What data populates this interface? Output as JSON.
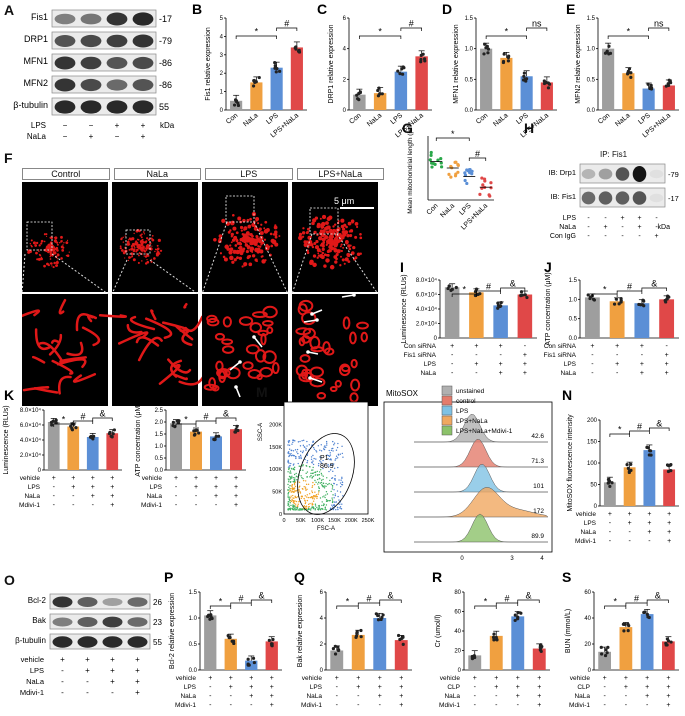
{
  "panels": {
    "A": {
      "letter": "A",
      "rows": [
        "Fis1",
        "DRP1",
        "MFN1",
        "MFN2",
        "β-tubulin"
      ],
      "mw": [
        "-17",
        "-79",
        "-86",
        "-86",
        "55"
      ],
      "cond": [
        {
          "label": "LPS",
          "vals": [
            "−",
            "−",
            "+",
            "+"
          ]
        },
        {
          "label": "NaLa",
          "vals": [
            "−",
            "+",
            "−",
            "+"
          ]
        }
      ],
      "kda": "kDa"
    },
    "F": {
      "letter": "F",
      "labels": [
        "Control",
        "NaLa",
        "LPS",
        "LPS+NaLa"
      ],
      "scale": "5 μm"
    },
    "G": {
      "letter": "G",
      "ylabel": "Mean mitochondrial length (μm)",
      "cats": [
        "Con",
        "NaLa",
        "LPS",
        "LPS+NaLa"
      ]
    },
    "H": {
      "letter": "H",
      "title": "IP: Fis1",
      "rows": [
        "IB: Drp1",
        "IB: Fis1"
      ],
      "mw": [
        "-79",
        "-17"
      ],
      "cond": [
        {
          "label": "LPS",
          "vals": [
            "-",
            "-",
            "+",
            "+",
            "-"
          ]
        },
        {
          "label": "NaLa",
          "vals": [
            "-",
            "+",
            "-",
            "+",
            "-"
          ]
        },
        {
          "label": "Con IgG",
          "vals": [
            "-",
            "-",
            "-",
            "-",
            "+"
          ]
        }
      ],
      "kda": "kDa"
    },
    "M": {
      "letter": "M",
      "mitosox": "MitoSOX",
      "gate": "P1",
      "gate_val": "86.9",
      "ssc": "SSC-A",
      "fsc": "FSC-A",
      "yticks": [
        "250K",
        "200K",
        "150K",
        "100K",
        "50K",
        "0"
      ],
      "xticks": [
        "0",
        "50K",
        "100K",
        "150K",
        "200K",
        "250K"
      ],
      "legend": [
        "unstained",
        "control",
        "LPS",
        "LPS+NaLa",
        "LPS+NaLa+Mdivi-1"
      ],
      "values": [
        "42.6",
        "71.3",
        "101",
        "172",
        "89.9"
      ],
      "xt": [
        "0",
        "3",
        "4"
      ]
    },
    "O": {
      "letter": "O",
      "rows": [
        "Bcl-2",
        "Bak",
        "β-tubulin"
      ],
      "mw": [
        "26",
        "23",
        "55"
      ],
      "cond": [
        {
          "label": "vehicle",
          "vals": [
            "+",
            "+",
            "+",
            "+"
          ]
        },
        {
          "label": "LPS",
          "vals": [
            "-",
            "+",
            "+",
            "+"
          ]
        },
        {
          "label": "NaLa",
          "vals": [
            "-",
            "-",
            "+",
            "+"
          ]
        },
        {
          "label": "Mdivi-1",
          "vals": [
            "-",
            "-",
            "-",
            "+"
          ]
        }
      ]
    }
  },
  "chart_data": [
    {
      "id": "B",
      "type": "bar",
      "ylabel": "Fis1 relative expression",
      "categories": [
        "Con",
        "NaLa",
        "LPS",
        "LPS+NaLa"
      ],
      "values": [
        0.5,
        1.5,
        2.3,
        3.4
      ],
      "ylim": [
        0,
        5
      ],
      "yticks": [
        "0",
        "1",
        "2",
        "3",
        "4",
        "5"
      ],
      "sig": [
        "*",
        "#"
      ]
    },
    {
      "id": "C",
      "type": "bar",
      "ylabel": "DRP1 relative expression",
      "categories": [
        "Con",
        "NaLa",
        "LPS",
        "LPS+NaLa"
      ],
      "values": [
        1.0,
        1.1,
        2.5,
        3.5
      ],
      "ylim": [
        0,
        6
      ],
      "yticks": [
        "0",
        "2",
        "4",
        "6"
      ],
      "sig": [
        "*",
        "#"
      ]
    },
    {
      "id": "D",
      "type": "bar",
      "ylabel": "MFN1 relative expression",
      "categories": [
        "Con",
        "NaLa",
        "LPS",
        "LPS+NaLa"
      ],
      "values": [
        1.0,
        0.85,
        0.55,
        0.45
      ],
      "ylim": [
        0,
        1.5
      ],
      "yticks": [
        "0.0",
        "0.5",
        "1.0",
        "1.5"
      ],
      "sig": [
        "*",
        "ns"
      ]
    },
    {
      "id": "E",
      "type": "bar",
      "ylabel": "MFN2 relative expression",
      "categories": [
        "Con",
        "NaLa",
        "LPS",
        "LPS+NaLa"
      ],
      "values": [
        1.0,
        0.6,
        0.35,
        0.4
      ],
      "ylim": [
        0,
        1.5
      ],
      "yticks": [
        "0.0",
        "0.5",
        "1.0",
        "1.5"
      ],
      "sig": [
        "*",
        "ns"
      ]
    },
    {
      "id": "G",
      "type": "scatter",
      "ylabel": "Mean mitochondrial length (μm)",
      "categories": [
        "Con",
        "NaLa",
        "LPS",
        "LPS+NaLa"
      ],
      "values": [
        1.8,
        1.5,
        1.1,
        0.6
      ],
      "ylim": [
        0,
        3
      ],
      "sig": [
        "*",
        "#"
      ]
    },
    {
      "id": "I",
      "type": "bar",
      "ylabel": "Luminescence (RLUs)",
      "categories": [
        "1",
        "2",
        "3",
        "4"
      ],
      "values": [
        7.0,
        6.3,
        4.5,
        6.0
      ],
      "ylim": [
        0,
        8
      ],
      "yticks": [
        "0",
        "2.0×10⁴",
        "4.0×10⁴",
        "6.0×10⁴",
        "8.0×10⁴"
      ],
      "sig": [
        "*",
        "#",
        "&"
      ],
      "cond": [
        {
          "label": "Con siRNA",
          "vals": [
            "+",
            "+",
            "+",
            "-"
          ]
        },
        {
          "label": "Fis1 siRNA",
          "vals": [
            "-",
            "-",
            "-",
            "+"
          ]
        },
        {
          "label": "LPS",
          "vals": [
            "-",
            "+",
            "+",
            "+"
          ]
        },
        {
          "label": "NaLa",
          "vals": [
            "-",
            "-",
            "+",
            "+"
          ]
        }
      ]
    },
    {
      "id": "J",
      "type": "bar",
      "ylabel": "ATP concentration (μM)",
      "categories": [
        "1",
        "2",
        "3",
        "4"
      ],
      "values": [
        1.05,
        0.95,
        0.9,
        1.0
      ],
      "ylim": [
        0,
        1.5
      ],
      "yticks": [
        "0.0",
        "0.5",
        "1.0",
        "1.5"
      ],
      "sig": [
        "*",
        "#",
        "&"
      ],
      "cond": [
        {
          "label": "Con siRNA",
          "vals": [
            "+",
            "+",
            "+",
            "-"
          ]
        },
        {
          "label": "Fis1 siRNA",
          "vals": [
            "-",
            "-",
            "-",
            "+"
          ]
        },
        {
          "label": "LPS",
          "vals": [
            "-",
            "+",
            "+",
            "+"
          ]
        },
        {
          "label": "NaLa",
          "vals": [
            "-",
            "-",
            "+",
            "+"
          ]
        }
      ]
    },
    {
      "id": "K",
      "type": "bar",
      "ylabel": "Luminescence (RLUs)",
      "categories": [
        "1",
        "2",
        "3",
        "4"
      ],
      "values": [
        6.4,
        5.8,
        4.4,
        4.9
      ],
      "ylim": [
        0,
        8
      ],
      "yticks": [
        "0",
        "2.0×10⁴",
        "4.0×10⁴",
        "6.0×10⁴",
        "8.0×10⁴"
      ],
      "sig": [
        "*",
        "#",
        "&"
      ],
      "cond": [
        {
          "label": "vehicle",
          "vals": [
            "+",
            "+",
            "+",
            "+"
          ]
        },
        {
          "label": "LPS",
          "vals": [
            "-",
            "+",
            "+",
            "+"
          ]
        },
        {
          "label": "NaLa",
          "vals": [
            "-",
            "-",
            "+",
            "+"
          ]
        },
        {
          "label": "Mdivi-1",
          "vals": [
            "-",
            "-",
            "-",
            "+"
          ]
        }
      ]
    },
    {
      "id": "L",
      "type": "bar",
      "ylabel": "ATP concentration (μM)",
      "categories": [
        "1",
        "2",
        "3",
        "4"
      ],
      "values": [
        1.95,
        1.6,
        1.4,
        1.7
      ],
      "ylim": [
        0,
        2.5
      ],
      "yticks": [
        "0.0",
        "0.5",
        "1.0",
        "1.5",
        "2.0",
        "2.5"
      ],
      "sig": [
        "*",
        "#",
        "&"
      ],
      "cond": [
        {
          "label": "vehicle",
          "vals": [
            "+",
            "+",
            "+",
            "+"
          ]
        },
        {
          "label": "LPS",
          "vals": [
            "-",
            "+",
            "+",
            "+"
          ]
        },
        {
          "label": "NaLa",
          "vals": [
            "-",
            "-",
            "+",
            "+"
          ]
        },
        {
          "label": "Mdivi-1",
          "vals": [
            "-",
            "-",
            "-",
            "+"
          ]
        }
      ]
    },
    {
      "id": "N",
      "type": "bar",
      "ylabel": "MitoSOX fluorescence intensity",
      "categories": [
        "1",
        "2",
        "3",
        "4"
      ],
      "values": [
        55,
        90,
        130,
        85
      ],
      "ylim": [
        0,
        200
      ],
      "yticks": [
        "0",
        "50",
        "100",
        "150",
        "200"
      ],
      "sig": [
        "*",
        "#",
        "&"
      ],
      "cond": [
        {
          "label": "vehicle",
          "vals": [
            "+",
            "+",
            "+",
            "+"
          ]
        },
        {
          "label": "LPS",
          "vals": [
            "-",
            "+",
            "+",
            "+"
          ]
        },
        {
          "label": "NaLa",
          "vals": [
            "-",
            "-",
            "+",
            "+"
          ]
        },
        {
          "label": "Mdivi-1",
          "vals": [
            "-",
            "-",
            "-",
            "+"
          ]
        }
      ]
    },
    {
      "id": "P",
      "type": "bar",
      "ylabel": "Bcl-2 relative expression",
      "categories": [
        "1",
        "2",
        "3",
        "4"
      ],
      "values": [
        1.05,
        0.6,
        0.18,
        0.55
      ],
      "ylim": [
        0,
        1.5
      ],
      "yticks": [
        "0.0",
        "0.5",
        "1.0",
        "1.5"
      ],
      "sig": [
        "*",
        "#",
        "&"
      ],
      "cond": [
        {
          "label": "vehicle",
          "vals": [
            "+",
            "+",
            "+",
            "+"
          ]
        },
        {
          "label": "LPS",
          "vals": [
            "-",
            "+",
            "+",
            "+"
          ]
        },
        {
          "label": "NaLa",
          "vals": [
            "-",
            "-",
            "+",
            "+"
          ]
        },
        {
          "label": "Mdivi-1",
          "vals": [
            "-",
            "-",
            "-",
            "+"
          ]
        }
      ]
    },
    {
      "id": "Q",
      "type": "bar",
      "ylabel": "Bak relative expression",
      "categories": [
        "1",
        "2",
        "3",
        "4"
      ],
      "values": [
        1.5,
        2.7,
        4.0,
        2.3
      ],
      "ylim": [
        0,
        6
      ],
      "yticks": [
        "0",
        "2",
        "4",
        "6"
      ],
      "sig": [
        "*",
        "#",
        "&"
      ],
      "cond": [
        {
          "label": "vehicle",
          "vals": [
            "+",
            "+",
            "+",
            "+"
          ]
        },
        {
          "label": "LPS",
          "vals": [
            "-",
            "+",
            "+",
            "+"
          ]
        },
        {
          "label": "NaLa",
          "vals": [
            "-",
            "-",
            "+",
            "+"
          ]
        },
        {
          "label": "Mdivi-1",
          "vals": [
            "-",
            "-",
            "-",
            "+"
          ]
        }
      ]
    },
    {
      "id": "R",
      "type": "bar",
      "ylabel": "Cr (umol/l)",
      "categories": [
        "1",
        "2",
        "3",
        "4"
      ],
      "values": [
        15,
        35,
        55,
        22
      ],
      "ylim": [
        0,
        80
      ],
      "yticks": [
        "0",
        "20",
        "40",
        "60",
        "80"
      ],
      "sig": [
        "*",
        "#",
        "&"
      ],
      "cond": [
        {
          "label": "vehicle",
          "vals": [
            "+",
            "+",
            "+",
            "+"
          ]
        },
        {
          "label": "CLP",
          "vals": [
            "-",
            "+",
            "+",
            "+"
          ]
        },
        {
          "label": "NaLa",
          "vals": [
            "-",
            "-",
            "+",
            "+"
          ]
        },
        {
          "label": "Mdivi-1",
          "vals": [
            "-",
            "-",
            "-",
            "+"
          ]
        }
      ]
    },
    {
      "id": "S",
      "type": "bar",
      "ylabel": "BUN (mmol/L)",
      "categories": [
        "1",
        "2",
        "3",
        "4"
      ],
      "values": [
        14,
        33,
        43,
        22
      ],
      "ylim": [
        0,
        60
      ],
      "yticks": [
        "0",
        "20",
        "40",
        "60"
      ],
      "sig": [
        "*",
        "#",
        "&"
      ],
      "cond": [
        {
          "label": "vehicle",
          "vals": [
            "+",
            "+",
            "+",
            "+"
          ]
        },
        {
          "label": "CLP",
          "vals": [
            "-",
            "+",
            "+",
            "+"
          ]
        },
        {
          "label": "NaLa",
          "vals": [
            "-",
            "-",
            "+",
            "+"
          ]
        },
        {
          "label": "Mdivi-1",
          "vals": [
            "-",
            "-",
            "-",
            "+"
          ]
        }
      ]
    }
  ],
  "colors": {
    "con": "#9e9e9e",
    "nala": "#f0a040",
    "lps": "#5b8fd6",
    "comb": "#e04848",
    "g1": "#2aa84a",
    "g2": "#f0a040",
    "g3": "#5b8fd6",
    "g4": "#e04848",
    "h1": "#b0b0b0",
    "h2": "#e47c6c",
    "h3": "#7fc2e4",
    "h4": "#f0a860",
    "h5": "#8cc26a"
  }
}
